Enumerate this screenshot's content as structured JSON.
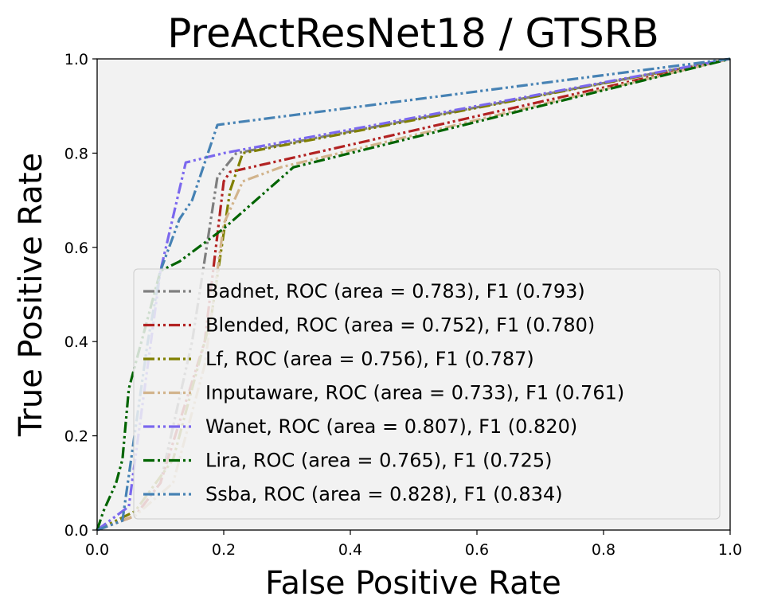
{
  "chart_data": {
    "type": "line",
    "title": "PreActResNet18 / GTSRB",
    "xlabel": "False Positive Rate",
    "ylabel": "True Positive Rate",
    "xlim": [
      0.0,
      1.0
    ],
    "ylim": [
      0.0,
      1.0
    ],
    "xticks": [
      "0.0",
      "0.2",
      "0.4",
      "0.6",
      "0.8",
      "1.0"
    ],
    "yticks": [
      "0.0",
      "0.2",
      "0.4",
      "0.6",
      "0.8",
      "1.0"
    ],
    "grid": false,
    "legend_position": "lower-right",
    "series": [
      {
        "name": "Badnet, ROC (area = 0.783), F1 (0.793)",
        "color": "#7f7f7f",
        "x": [
          0.0,
          0.06,
          0.1,
          0.15,
          0.19,
          0.22,
          1.0
        ],
        "y": [
          0.0,
          0.03,
          0.1,
          0.4,
          0.75,
          0.8,
          1.0
        ]
      },
      {
        "name": "Blended, ROC (area = 0.752), F1 (0.780)",
        "color": "#b22222",
        "x": [
          0.0,
          0.06,
          0.1,
          0.17,
          0.2,
          0.21,
          1.0
        ],
        "y": [
          0.0,
          0.03,
          0.1,
          0.4,
          0.74,
          0.76,
          1.0
        ]
      },
      {
        "name": "Lf, ROC (area = 0.756), F1 (0.787)",
        "color": "#808000",
        "x": [
          0.0,
          0.06,
          0.12,
          0.18,
          0.21,
          0.23,
          1.0
        ],
        "y": [
          0.0,
          0.04,
          0.15,
          0.45,
          0.72,
          0.8,
          1.0
        ]
      },
      {
        "name": "Inputaware, ROC (area = 0.733), F1 (0.761)",
        "color": "#d2b48c",
        "x": [
          0.0,
          0.06,
          0.12,
          0.17,
          0.2,
          0.23,
          0.29,
          1.0
        ],
        "y": [
          0.0,
          0.03,
          0.1,
          0.35,
          0.65,
          0.74,
          0.77,
          1.0
        ]
      },
      {
        "name": "Wanet, ROC (area = 0.807), F1 (0.820)",
        "color": "#7b68ee",
        "x": [
          0.0,
          0.05,
          0.08,
          0.1,
          0.14,
          0.2,
          1.0
        ],
        "y": [
          0.0,
          0.05,
          0.35,
          0.55,
          0.78,
          0.8,
          1.0
        ]
      },
      {
        "name": "Lira, ROC (area = 0.765), F1 (0.725)",
        "color": "#006400",
        "x": [
          0.0,
          0.01,
          0.03,
          0.04,
          0.05,
          0.1,
          0.13,
          0.16,
          0.2,
          0.31,
          1.0
        ],
        "y": [
          0.0,
          0.04,
          0.1,
          0.15,
          0.3,
          0.55,
          0.57,
          0.6,
          0.64,
          0.77,
          1.0
        ]
      },
      {
        "name": "Ssba, ROC (area = 0.828), F1 (0.834)",
        "color": "#4682b4",
        "x": [
          0.0,
          0.04,
          0.08,
          0.1,
          0.13,
          0.15,
          0.19,
          1.0
        ],
        "y": [
          0.0,
          0.02,
          0.4,
          0.55,
          0.66,
          0.7,
          0.86,
          1.0
        ]
      }
    ]
  }
}
